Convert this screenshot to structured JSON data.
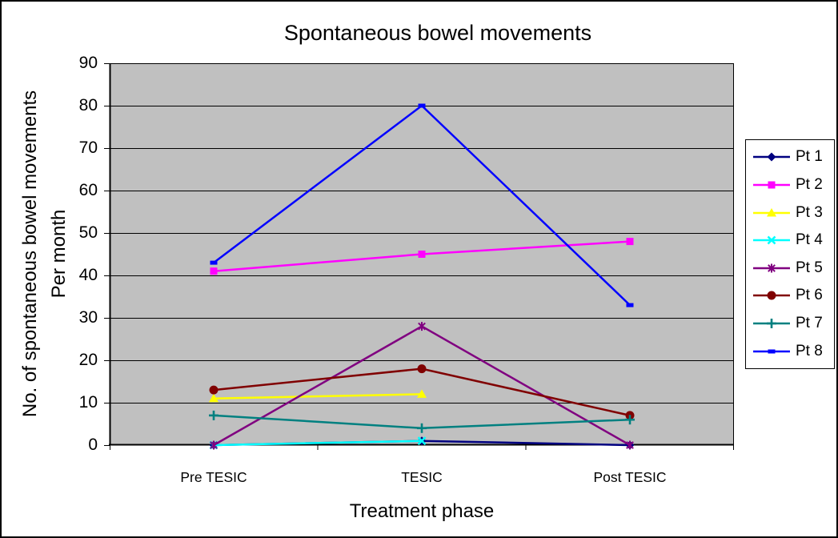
{
  "chart_data": {
    "type": "line",
    "title": "Spontaneous bowel movements",
    "xlabel": "Treatment phase",
    "ylabel_line1": "No. of spontaneous bowel movements",
    "ylabel_line2": "Per month",
    "categories": [
      "Pre TESIC",
      "TESIC",
      "Post TESIC"
    ],
    "series": [
      {
        "name": "Pt 1",
        "color": "#000080",
        "marker": "diamond",
        "values": [
          0,
          1,
          0
        ]
      },
      {
        "name": "Pt 2",
        "color": "#FF00FF",
        "marker": "square",
        "values": [
          41,
          45,
          48
        ]
      },
      {
        "name": "Pt 3",
        "color": "#FFFF00",
        "marker": "triangle",
        "values": [
          11,
          12,
          null
        ]
      },
      {
        "name": "Pt 4",
        "color": "#00FFFF",
        "marker": "x",
        "values": [
          0,
          1,
          null
        ]
      },
      {
        "name": "Pt 5",
        "color": "#800080",
        "marker": "asterisk",
        "values": [
          0,
          28,
          0
        ]
      },
      {
        "name": "Pt 6",
        "color": "#800000",
        "marker": "circle",
        "values": [
          13,
          18,
          7
        ]
      },
      {
        "name": "Pt 7",
        "color": "#008080",
        "marker": "plus",
        "values": [
          7,
          4,
          6
        ]
      },
      {
        "name": "Pt 8",
        "color": "#0000FF",
        "marker": "dash",
        "values": [
          43,
          80,
          33
        ]
      }
    ],
    "ylim": [
      0,
      90
    ],
    "yticks": [
      0,
      10,
      20,
      30,
      40,
      50,
      60,
      70,
      80,
      90
    ],
    "grid": "horizontal",
    "legend_position": "right",
    "plot_bg_color": "#C0C0C0",
    "page_bg_color": "#FFFFFF",
    "axis_color": "#000000"
  }
}
